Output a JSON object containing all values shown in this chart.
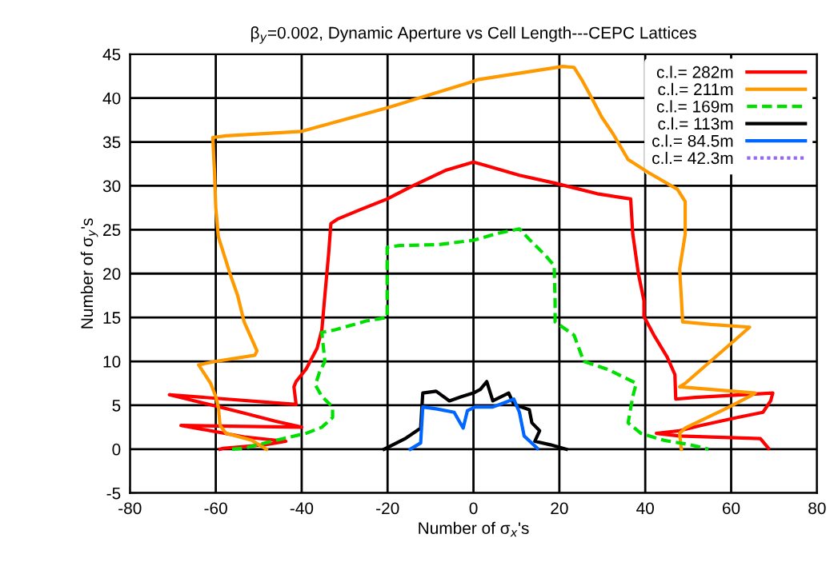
{
  "chart_data": {
    "type": "line",
    "title": "β$_{y}$=0.002, Dynamic Aperture vs Cell Length---CEPC Lattices",
    "xlabel": "Number of σ$_{x}$'s",
    "ylabel": "Number of σ$_{y}$'s",
    "xlim": [
      -80,
      80
    ],
    "ylim": [
      -5,
      45
    ],
    "xticks": [
      -80,
      -60,
      -40,
      -20,
      0,
      20,
      40,
      60,
      80
    ],
    "yticks": [
      -5,
      0,
      5,
      10,
      15,
      20,
      25,
      30,
      35,
      40,
      45
    ],
    "grid": true,
    "legend": "top right",
    "marker": "none",
    "series": [
      {
        "name": "c.l.= 282m",
        "color": "#ff0000",
        "line_style": "solid",
        "x": [
          -59,
          -58.2,
          -48.6,
          -43.7,
          -53.4,
          -68.1,
          -40,
          -46.2,
          -53.4,
          -60.7,
          -70.8,
          -41.3,
          -41.8,
          -41.3,
          -39,
          -36.4,
          -35.3,
          -34.6,
          -33.7,
          -33.2,
          -31.7,
          -26.3,
          -20.1,
          -14.1,
          -6.3,
          0,
          2.2,
          10.7,
          19,
          28.8,
          36.6,
          37.1,
          38.4,
          39.7,
          39.7,
          42,
          45.1,
          46.9,
          47.1,
          51.6,
          69.7,
          69.2,
          67.4,
          61.4,
          52.9,
          48,
          42.6,
          48,
          66.8,
          68.7
        ],
        "values": [
          0,
          0.1,
          0.5,
          0.9,
          1.4,
          2.7,
          2.5,
          3.2,
          4.1,
          5,
          6.2,
          5.1,
          7.1,
          7.7,
          9.1,
          11.5,
          13.6,
          17.5,
          22.4,
          25.7,
          26.2,
          27.3,
          28.5,
          30,
          31.8,
          32.7,
          32.4,
          31.2,
          30.3,
          29.1,
          28.5,
          24.5,
          20,
          16.9,
          15.1,
          13,
          10.5,
          8.5,
          5.7,
          5.9,
          6.4,
          5.5,
          4.2,
          3.6,
          2.7,
          2.1,
          1.8,
          1.5,
          1.2,
          0.1
        ]
      },
      {
        "name": "c.l.= 211m",
        "color": "#ff9900",
        "line_style": "solid",
        "x": [
          -48.2,
          -51.6,
          -57.6,
          -59,
          -59.4,
          -60,
          -61.2,
          -64,
          -60,
          -50.9,
          -50.4,
          -53.4,
          -54.9,
          -56.7,
          -59.4,
          -60,
          -60.3,
          -60.7,
          -57.6,
          -40,
          -20,
          0,
          1,
          20.8,
          23.4,
          25.2,
          27,
          29.9,
          32.4,
          36,
          40.8,
          47.5,
          49.3,
          49.3,
          48,
          48.4,
          48.7,
          55.3,
          64.3,
          60.1,
          49.3,
          48,
          55.3,
          65.6,
          64.3,
          58.3,
          49.3,
          48,
          48.4
        ],
        "values": [
          0,
          1,
          1.8,
          2.7,
          4.8,
          6,
          7.5,
          9.6,
          10,
          10.7,
          11.2,
          14.5,
          17.5,
          20,
          24.2,
          27.5,
          31.6,
          35.5,
          35.7,
          36.2,
          38.9,
          41.9,
          42.1,
          43.6,
          43.5,
          42.1,
          40.5,
          37.8,
          36,
          33,
          31.5,
          29.6,
          28.2,
          24.5,
          20.5,
          17.3,
          14.5,
          14.2,
          13.9,
          12.1,
          7.5,
          7.1,
          6.8,
          6.4,
          6,
          4.5,
          2.4,
          1.8,
          0
        ]
      },
      {
        "name": "c.l.= 169m",
        "color": "#00e000",
        "line_style": "dashed",
        "x": [
          -56.2,
          -53.4,
          -48.6,
          -44.4,
          -39,
          -35.3,
          -32.8,
          -32.8,
          -35.3,
          -36.8,
          -35.9,
          -34.6,
          -35.3,
          -32.2,
          -25,
          -20.1,
          -20.1,
          -20.1,
          -17.2,
          -8.2,
          0,
          5.8,
          10.7,
          13,
          16.7,
          18.8,
          19,
          19,
          23.4,
          25.7,
          31.2,
          37.9,
          37.1,
          36,
          39,
          44.4,
          50.5,
          54.7
        ],
        "values": [
          0,
          0.1,
          0.7,
          1.2,
          1.8,
          2.5,
          3.6,
          4.8,
          6,
          7.3,
          8.7,
          10,
          13.3,
          13.6,
          14.6,
          15,
          17.5,
          23,
          23.2,
          23.3,
          23.8,
          24.6,
          25.1,
          23.9,
          22.1,
          20.9,
          16.9,
          14.5,
          13,
          10,
          9.1,
          7.5,
          6,
          3,
          1.8,
          1,
          0.5,
          0
        ]
      },
      {
        "name": "c.l.= 113m",
        "color": "#000000",
        "line_style": "solid",
        "x": [
          -20.8,
          -15.9,
          -12.3,
          -11.8,
          -8.7,
          -5.6,
          -2.7,
          0,
          1.6,
          3.1,
          4.5,
          8.2,
          9.4,
          13,
          13.6,
          15.4,
          14.3,
          17.9,
          21.6
        ],
        "values": [
          0,
          1.2,
          2.4,
          6.4,
          6.6,
          5.5,
          6,
          6.4,
          6.8,
          7.7,
          5.5,
          6.4,
          5.1,
          4.5,
          3,
          2.1,
          0.9,
          0.5,
          0
        ]
      },
      {
        "name": "c.l.= 84.5m",
        "color": "#0066ff",
        "line_style": "solid",
        "x": [
          -14.7,
          -12.3,
          -11.8,
          -8.7,
          -4.5,
          -2.4,
          -1.4,
          0.4,
          4.5,
          9.4,
          10.7,
          11.8,
          14.9
        ],
        "values": [
          0,
          0.7,
          4.8,
          4.6,
          4.2,
          2.4,
          4.4,
          4.8,
          4.8,
          5.7,
          4.2,
          1.5,
          0.1
        ]
      },
      {
        "name": "c.l.= 42.3m",
        "color": "#9966ee",
        "line_style": "dotted"
      }
    ]
  }
}
